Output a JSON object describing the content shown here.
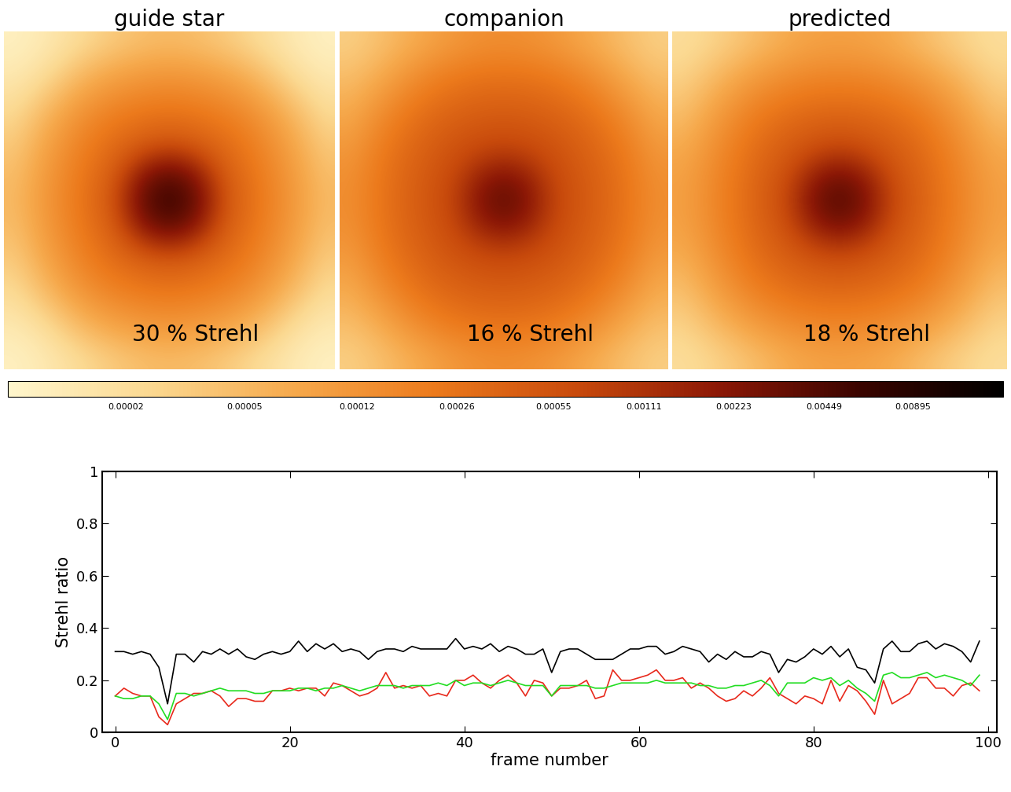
{
  "images": [
    {
      "title": "guide star",
      "label": "30 % Strehl",
      "cells": [
        [
          1e-05,
          1.5e-05,
          2.5e-05,
          4e-05,
          5e-05,
          4e-05,
          2.5e-05,
          1.5e-05,
          1e-05
        ],
        [
          1.5e-05,
          3e-05,
          8e-05,
          0.00012,
          0.00014,
          0.00012,
          8e-05,
          3e-05,
          1.5e-05
        ],
        [
          2.5e-05,
          8e-05,
          0.00018,
          0.00026,
          0.0003,
          0.00026,
          0.00018,
          8e-05,
          2.5e-05
        ],
        [
          4e-05,
          0.00012,
          0.00026,
          0.0005,
          0.0008,
          0.0005,
          0.00026,
          0.00012,
          4e-05
        ],
        [
          5e-05,
          0.00014,
          0.0003,
          0.0008,
          0.009,
          0.0008,
          0.0003,
          0.00014,
          5e-05
        ],
        [
          4e-05,
          0.00012,
          0.00026,
          0.0005,
          0.0008,
          0.0005,
          0.00026,
          0.00012,
          4e-05
        ],
        [
          2.5e-05,
          8e-05,
          0.00018,
          0.00026,
          0.0003,
          0.00026,
          0.00018,
          8e-05,
          2.5e-05
        ],
        [
          1.5e-05,
          3e-05,
          8e-05,
          0.00012,
          0.00014,
          0.00012,
          8e-05,
          3e-05,
          1.5e-05
        ],
        [
          1e-05,
          1.5e-05,
          2.5e-05,
          4e-05,
          5e-05,
          4e-05,
          2.5e-05,
          1.5e-05,
          1e-05
        ]
      ]
    },
    {
      "title": "companion",
      "label": "16 % Strehl",
      "cells": [
        [
          3e-05,
          5e-05,
          8e-05,
          0.00012,
          0.00014,
          0.00012,
          8e-05,
          5e-05,
          3e-05
        ],
        [
          5e-05,
          0.0001,
          0.0002,
          0.00028,
          0.0003,
          0.00028,
          0.0002,
          0.0001,
          5e-05
        ],
        [
          8e-05,
          0.0002,
          0.00035,
          0.00045,
          0.0005,
          0.00045,
          0.00035,
          0.0002,
          8e-05
        ],
        [
          0.00012,
          0.00028,
          0.00045,
          0.0007,
          0.0009,
          0.0007,
          0.00045,
          0.00028,
          0.00012
        ],
        [
          0.00014,
          0.0003,
          0.0005,
          0.0009,
          0.005,
          0.0009,
          0.0005,
          0.0003,
          0.00014
        ],
        [
          0.00012,
          0.00028,
          0.00045,
          0.0007,
          0.0009,
          0.0007,
          0.00045,
          0.00028,
          0.00012
        ],
        [
          8e-05,
          0.0002,
          0.00035,
          0.00045,
          0.0005,
          0.00045,
          0.00035,
          0.0002,
          8e-05
        ],
        [
          5e-05,
          0.0001,
          0.0002,
          0.00028,
          0.0003,
          0.00028,
          0.0002,
          0.0001,
          5e-05
        ],
        [
          3e-05,
          5e-05,
          8e-05,
          0.00012,
          0.00014,
          0.00012,
          8e-05,
          5e-05,
          3e-05
        ]
      ]
    },
    {
      "title": "predicted",
      "label": "18 % Strehl",
      "cells": [
        [
          2e-05,
          3e-05,
          5e-05,
          8e-05,
          9e-05,
          8e-05,
          5e-05,
          3e-05,
          2e-05
        ],
        [
          3e-05,
          7e-05,
          0.00013,
          0.00018,
          0.0002,
          0.00018,
          0.00013,
          7e-05,
          3e-05
        ],
        [
          5e-05,
          0.00013,
          0.00026,
          0.00036,
          0.0004,
          0.00036,
          0.00026,
          0.00013,
          5e-05
        ],
        [
          8e-05,
          0.00018,
          0.00036,
          0.0006,
          0.0009,
          0.0006,
          0.00036,
          0.00018,
          8e-05
        ],
        [
          9e-05,
          0.0002,
          0.0004,
          0.0009,
          0.006,
          0.0009,
          0.0004,
          0.0002,
          9e-05
        ],
        [
          8e-05,
          0.00018,
          0.00036,
          0.0006,
          0.0009,
          0.0006,
          0.00036,
          0.00018,
          8e-05
        ],
        [
          5e-05,
          0.00013,
          0.00026,
          0.00036,
          0.0004,
          0.00036,
          0.00026,
          0.00013,
          5e-05
        ],
        [
          3e-05,
          7e-05,
          0.00013,
          0.00018,
          0.0002,
          0.00018,
          0.00013,
          7e-05,
          3e-05
        ],
        [
          2e-05,
          3e-05,
          5e-05,
          8e-05,
          9e-05,
          8e-05,
          5e-05,
          3e-05,
          2e-05
        ]
      ]
    }
  ],
  "colorbar": {
    "log": true,
    "range": [
      8e-06,
      0.018
    ],
    "ticks": [
      {
        "value": 2e-05,
        "label": "0.00002"
      },
      {
        "value": 5e-05,
        "label": "0.00005"
      },
      0.00012,
      0.00026,
      0.00055,
      0.00111,
      0.00223,
      0.00449,
      0.00895
    ]
  },
  "chart_data": {
    "type": "line",
    "xlabel": "frame number",
    "ylabel": "Strehl ratio",
    "x": [
      0,
      1,
      2,
      3,
      4,
      5,
      6,
      7,
      8,
      9,
      10,
      11,
      12,
      13,
      14,
      15,
      16,
      17,
      18,
      19,
      20,
      21,
      22,
      23,
      24,
      25,
      26,
      27,
      28,
      29,
      30,
      31,
      32,
      33,
      34,
      35,
      36,
      37,
      38,
      39,
      40,
      41,
      42,
      43,
      44,
      45,
      46,
      47,
      48,
      49,
      50,
      51,
      52,
      53,
      54,
      55,
      56,
      57,
      58,
      59,
      60,
      61,
      62,
      63,
      64,
      65,
      66,
      67,
      68,
      69,
      70,
      71,
      72,
      73,
      74,
      75,
      76,
      77,
      78,
      79,
      80,
      81,
      82,
      83,
      84,
      85,
      86,
      87,
      88,
      89,
      90,
      91,
      92,
      93,
      94,
      95,
      96,
      97,
      98,
      99
    ],
    "xlim": [
      -1.5,
      101
    ],
    "xticks": [
      0,
      20,
      40,
      60,
      80,
      100
    ],
    "ylim": [
      0,
      1
    ],
    "yticks": [
      0,
      0.2,
      0.4,
      0.6,
      0.8,
      1
    ],
    "series": [
      {
        "color": "#000000",
        "values": [
          0.31,
          0.31,
          0.3,
          0.31,
          0.3,
          0.25,
          0.11,
          0.3,
          0.3,
          0.27,
          0.31,
          0.3,
          0.32,
          0.3,
          0.32,
          0.29,
          0.28,
          0.3,
          0.31,
          0.3,
          0.31,
          0.35,
          0.31,
          0.34,
          0.32,
          0.34,
          0.31,
          0.32,
          0.31,
          0.28,
          0.31,
          0.32,
          0.32,
          0.31,
          0.33,
          0.32,
          0.32,
          0.32,
          0.32,
          0.36,
          0.32,
          0.33,
          0.32,
          0.34,
          0.31,
          0.33,
          0.32,
          0.3,
          0.3,
          0.32,
          0.23,
          0.31,
          0.32,
          0.32,
          0.3,
          0.28,
          0.28,
          0.28,
          0.3,
          0.32,
          0.32,
          0.33,
          0.33,
          0.3,
          0.31,
          0.33,
          0.32,
          0.31,
          0.27,
          0.3,
          0.28,
          0.31,
          0.29,
          0.29,
          0.31,
          0.3,
          0.23,
          0.28,
          0.27,
          0.29,
          0.32,
          0.3,
          0.33,
          0.29,
          0.32,
          0.25,
          0.24,
          0.19,
          0.32,
          0.35,
          0.31,
          0.31,
          0.34,
          0.35,
          0.32,
          0.34,
          0.33,
          0.31,
          0.27,
          0.35
        ]
      },
      {
        "color": "#e8291c",
        "values": [
          0.14,
          0.17,
          0.15,
          0.14,
          0.14,
          0.06,
          0.03,
          0.11,
          0.13,
          0.15,
          0.15,
          0.16,
          0.14,
          0.1,
          0.13,
          0.13,
          0.12,
          0.12,
          0.16,
          0.16,
          0.17,
          0.16,
          0.17,
          0.17,
          0.14,
          0.19,
          0.18,
          0.16,
          0.14,
          0.15,
          0.17,
          0.23,
          0.17,
          0.18,
          0.17,
          0.18,
          0.14,
          0.15,
          0.14,
          0.2,
          0.2,
          0.22,
          0.19,
          0.17,
          0.2,
          0.22,
          0.19,
          0.14,
          0.2,
          0.19,
          0.14,
          0.17,
          0.17,
          0.18,
          0.2,
          0.13,
          0.14,
          0.24,
          0.2,
          0.2,
          0.21,
          0.22,
          0.24,
          0.2,
          0.2,
          0.21,
          0.17,
          0.19,
          0.17,
          0.14,
          0.12,
          0.13,
          0.16,
          0.14,
          0.17,
          0.21,
          0.15,
          0.13,
          0.11,
          0.14,
          0.13,
          0.11,
          0.2,
          0.12,
          0.18,
          0.16,
          0.12,
          0.07,
          0.2,
          0.11,
          0.13,
          0.15,
          0.21,
          0.21,
          0.17,
          0.17,
          0.14,
          0.18,
          0.19,
          0.16
        ]
      },
      {
        "color": "#22dd22",
        "values": [
          0.14,
          0.13,
          0.13,
          0.14,
          0.14,
          0.11,
          0.05,
          0.15,
          0.15,
          0.14,
          0.15,
          0.16,
          0.17,
          0.16,
          0.16,
          0.16,
          0.15,
          0.15,
          0.16,
          0.16,
          0.16,
          0.17,
          0.17,
          0.16,
          0.17,
          0.17,
          0.18,
          0.17,
          0.16,
          0.17,
          0.18,
          0.18,
          0.18,
          0.17,
          0.18,
          0.18,
          0.18,
          0.19,
          0.18,
          0.2,
          0.18,
          0.19,
          0.19,
          0.18,
          0.19,
          0.2,
          0.19,
          0.18,
          0.18,
          0.18,
          0.14,
          0.18,
          0.18,
          0.18,
          0.18,
          0.17,
          0.17,
          0.18,
          0.19,
          0.19,
          0.19,
          0.19,
          0.2,
          0.19,
          0.19,
          0.19,
          0.19,
          0.18,
          0.18,
          0.17,
          0.17,
          0.18,
          0.18,
          0.19,
          0.2,
          0.18,
          0.14,
          0.19,
          0.19,
          0.19,
          0.21,
          0.2,
          0.21,
          0.18,
          0.2,
          0.17,
          0.15,
          0.12,
          0.22,
          0.23,
          0.21,
          0.21,
          0.22,
          0.23,
          0.21,
          0.22,
          0.21,
          0.2,
          0.18,
          0.22
        ]
      }
    ]
  }
}
